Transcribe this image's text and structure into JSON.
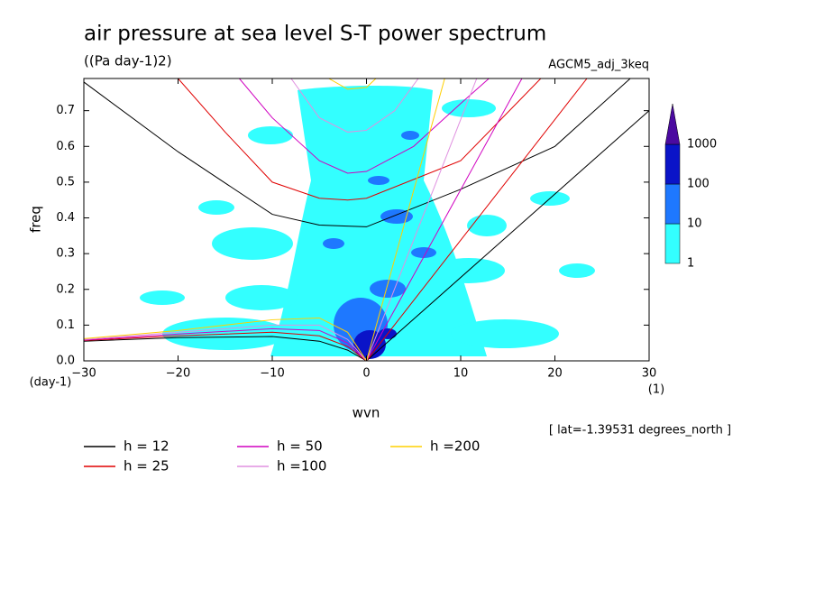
{
  "chart_data": {
    "type": "contour",
    "title": "air pressure at sea level S-T power spectrum",
    "subtitle": "((Pa day-1)2)",
    "run_label": "AGCM5_adj_3keq",
    "x_label": "wvn",
    "y_label": "freq",
    "x_unit": "(1)",
    "y_unit": "(day-1)",
    "note": "[ lat=-1.39531 degrees_north ]",
    "xlim": [
      -30,
      30
    ],
    "ylim": [
      0,
      0.79
    ],
    "xticks": [
      -30,
      -20,
      -10,
      0,
      10,
      20,
      30
    ],
    "yticks": [
      {
        "value": 0,
        "label": "0.0"
      },
      0.1,
      0.2,
      0.3,
      0.4,
      0.5,
      0.6,
      0.7
    ],
    "colorbar": {
      "levels": [
        1,
        10,
        100,
        1000
      ],
      "colors": [
        "#33ffff",
        "#1e78ff",
        "#0a14c8",
        "#4b0aa0"
      ]
    },
    "series": [
      {
        "name": "h = 12",
        "color": "#000000",
        "kelvin": {
          "x": [
            0,
            30
          ],
          "values": [
            0,
            0.7
          ]
        },
        "ig": {
          "x": [
            -30,
            -20,
            -10,
            -5,
            0,
            10,
            20,
            28
          ],
          "values": [
            0.78,
            0.585,
            0.41,
            0.38,
            0.375,
            0.48,
            0.6,
            0.79
          ]
        },
        "er": {
          "x": [
            -30,
            -20,
            -10,
            -5,
            -2,
            0
          ],
          "values": [
            0.055,
            0.065,
            0.068,
            0.055,
            0.03,
            0
          ]
        }
      },
      {
        "name": "h = 25",
        "color": "#e00000",
        "kelvin": {
          "x": [
            0,
            23.4
          ],
          "values": [
            0,
            0.79
          ]
        },
        "ig": {
          "x": [
            -20,
            -15,
            -10,
            -5,
            -2,
            0,
            10,
            18.5
          ],
          "values": [
            0.79,
            0.64,
            0.5,
            0.455,
            0.45,
            0.455,
            0.56,
            0.79
          ]
        },
        "er": {
          "x": [
            -30,
            -20,
            -10,
            -5,
            -2,
            0
          ],
          "values": [
            0.057,
            0.07,
            0.08,
            0.07,
            0.04,
            0
          ]
        }
      },
      {
        "name": "h = 50",
        "color": "#d000c0",
        "kelvin": {
          "x": [
            0,
            16.5
          ],
          "values": [
            0,
            0.79
          ]
        },
        "ig": {
          "x": [
            -13.5,
            -10,
            -5,
            -2,
            0,
            5,
            10,
            13
          ],
          "values": [
            0.79,
            0.68,
            0.56,
            0.525,
            0.53,
            0.6,
            0.72,
            0.79
          ]
        },
        "er": {
          "x": [
            -30,
            -20,
            -10,
            -5,
            -2,
            0
          ],
          "values": [
            0.058,
            0.075,
            0.09,
            0.085,
            0.05,
            0
          ]
        }
      },
      {
        "name": "h =100",
        "color": "#e090e0",
        "kelvin": {
          "x": [
            0,
            11.7
          ],
          "values": [
            0,
            0.79
          ]
        },
        "ig": {
          "x": [
            -8,
            -5,
            -2,
            0,
            3,
            5.5
          ],
          "values": [
            0.79,
            0.68,
            0.64,
            0.645,
            0.7,
            0.79
          ]
        },
        "er": {
          "x": [
            -30,
            -20,
            -10,
            -5,
            -2,
            0
          ],
          "values": [
            0.06,
            0.08,
            0.1,
            0.1,
            0.06,
            0
          ]
        }
      },
      {
        "name": "h =200",
        "color": "#ffd000",
        "kelvin": {
          "x": [
            0,
            8.3
          ],
          "values": [
            0,
            0.79
          ]
        },
        "ig": {
          "x": [
            -4,
            -2,
            0,
            1
          ],
          "values": [
            0.79,
            0.76,
            0.765,
            0.79
          ]
        },
        "er": {
          "x": [
            -30,
            -20,
            -10,
            -5,
            -2,
            0
          ],
          "values": [
            0.062,
            0.085,
            0.115,
            0.12,
            0.08,
            0
          ]
        }
      }
    ]
  }
}
